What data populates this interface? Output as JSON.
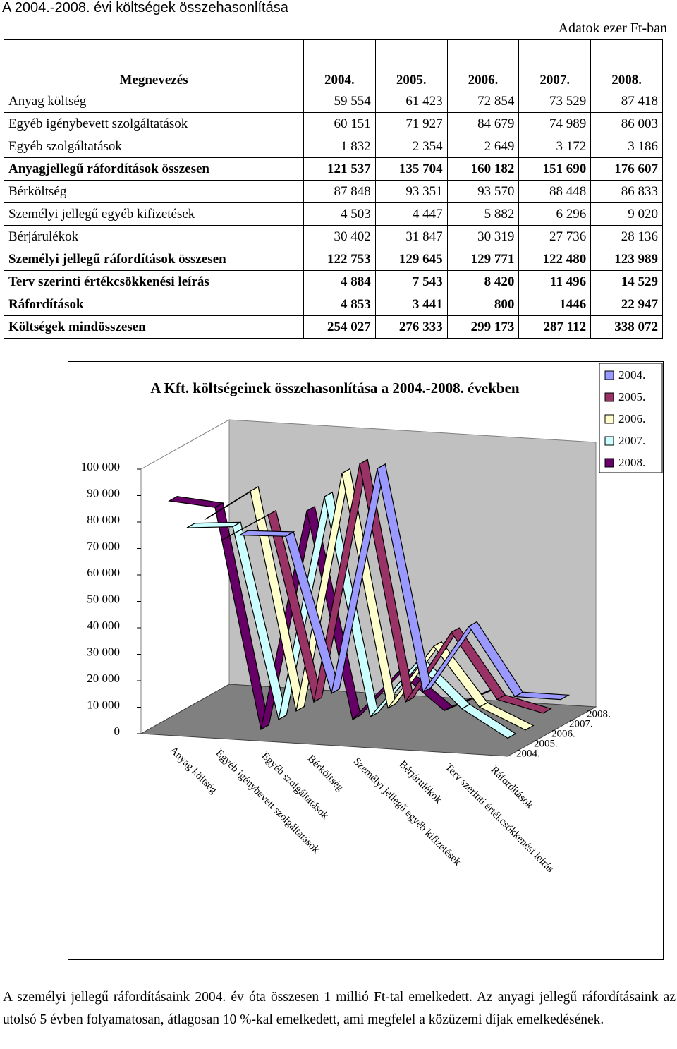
{
  "header": {
    "title": "A 2004.-2008. évi költségek összehasonlítása",
    "unit": "Adatok ezer Ft-ban"
  },
  "table": {
    "columns": [
      "Megnevezés",
      "2004.",
      "2005.",
      "2006.",
      "2007.",
      "2008."
    ],
    "bold_rows": [
      3,
      7,
      8,
      9,
      10
    ],
    "rows": [
      [
        "Anyag költség",
        "59 554",
        "61 423",
        "72 854",
        "73 529",
        "87 418"
      ],
      [
        "Egyéb igénybevett szolgáltatások",
        "60 151",
        "71 927",
        "84 679",
        "74 989",
        "86 003"
      ],
      [
        "Egyéb szolgáltatások",
        "1 832",
        "2 354",
        "2 649",
        "3 172",
        "3 186"
      ],
      [
        "Anyagjellegű ráfordítások összesen",
        "121 537",
        "135 704",
        "160 182",
        "151 690",
        "176 607"
      ],
      [
        "Bérköltség",
        "87 848",
        "93 351",
        "93 570",
        "88 448",
        "86 833"
      ],
      [
        "Személyi jellegű egyéb kifizetések",
        "4 503",
        "4 447",
        "5 882",
        "6 296",
        "9 020"
      ],
      [
        "Bérjárulékok",
        "30 402",
        "31 847",
        "30 319",
        "27 736",
        "28 136"
      ],
      [
        "Személyi jellegű ráfordítások összesen",
        "122 753",
        "129 645",
        "129 771",
        "122 480",
        "123 989"
      ],
      [
        "Terv szerinti értékcsökkenési leírás",
        "4 884",
        "7 543",
        "8 420",
        "11 496",
        "14 529"
      ],
      [
        "Ráfordítások",
        "4 853",
        "3 441",
        "800",
        "1446",
        "22 947"
      ],
      [
        "Költségek mindösszesen",
        "254 027",
        "276 333",
        "299 173",
        "287 112",
        "338 072"
      ]
    ]
  },
  "chart_data": {
    "type": "line3d",
    "title": "A Kft. költségeinek összehasonlítása a 2004.-2008. években",
    "categories": [
      "Anyag költség",
      "Egyéb igénybevett szolgáltatások",
      "Egyéb szolgáltatások",
      "Bérköltség",
      "Személyi jellegű egyéb kifizetések",
      "Bérjárulékok",
      "Terv szerinti értékcsökkenési leírás",
      "Ráfordítások"
    ],
    "series": [
      {
        "name": "2004.",
        "color": "#9999ff",
        "values": [
          59554,
          60151,
          1832,
          87848,
          4503,
          30402,
          4884,
          4853
        ]
      },
      {
        "name": "2005.",
        "color": "#993366",
        "values": [
          61423,
          71927,
          2354,
          93351,
          4447,
          31847,
          7543,
          3441
        ]
      },
      {
        "name": "2006.",
        "color": "#ffffcc",
        "values": [
          72854,
          84679,
          2649,
          93570,
          5882,
          30319,
          8420,
          800
        ]
      },
      {
        "name": "2007.",
        "color": "#ccffff",
        "values": [
          73529,
          74989,
          3172,
          88448,
          6296,
          27736,
          11496,
          1446
        ]
      },
      {
        "name": "2008.",
        "color": "#660066",
        "values": [
          87418,
          86003,
          3186,
          86833,
          9020,
          28136,
          14529,
          22947
        ]
      }
    ],
    "ylim": [
      0,
      100000
    ],
    "yticks": [
      0,
      {
        "value": 10000,
        "label": "10 000"
      },
      {
        "value": 20000,
        "label": "20 000"
      },
      {
        "value": 30000,
        "label": "30 000"
      },
      {
        "value": 40000,
        "label": "40 000"
      },
      {
        "value": 50000,
        "label": "50 000"
      },
      {
        "value": 60000,
        "label": "60 000"
      },
      {
        "value": 70000,
        "label": "70 000"
      },
      {
        "value": 80000,
        "label": "80 000"
      },
      {
        "value": 90000,
        "label": "90 000"
      },
      {
        "value": 100000,
        "label": "100 000"
      }
    ],
    "legend": "top-right"
  },
  "footer": {
    "text": "A személyi jellegű ráfordításaink 2004. év óta összesen 1 millió Ft-tal emelkedett. Az anyagi jellegű ráfordításaink az utolsó 5 évben folyamatosan, átlagosan 10 %-kal emelkedett, ami megfelel a közüzemi díjak emelkedésének."
  }
}
